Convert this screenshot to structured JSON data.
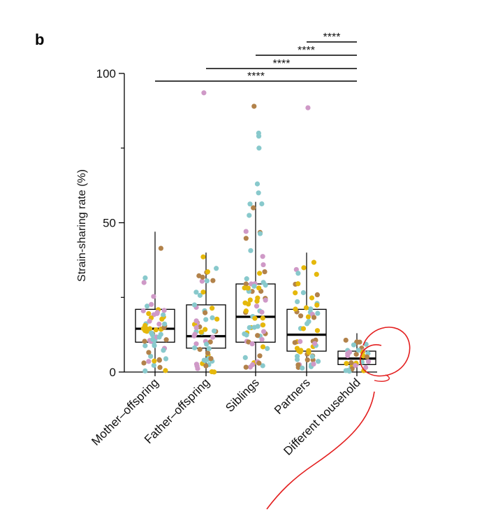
{
  "panel_label": "b",
  "chart_data": {
    "type": "box",
    "ylabel": "Strain-sharing rate (%)",
    "xlabel": "",
    "ylim": [
      0,
      100
    ],
    "yticks": [
      "0",
      "50",
      "100"
    ],
    "categories": [
      "Mother–offspring",
      "Father–offspring",
      "Siblings",
      "Partners",
      "Different household"
    ],
    "boxes": [
      {
        "q1": 10,
        "median": 14.5,
        "q3": 21,
        "whisker_low": 0,
        "whisker_high": 47
      },
      {
        "q1": 8,
        "median": 12,
        "q3": 22.5,
        "whisker_low": 0,
        "whisker_high": 40
      },
      {
        "q1": 10,
        "median": 18.5,
        "q3": 29.5,
        "whisker_low": 0,
        "whisker_high": 57
      },
      {
        "q1": 7,
        "median": 12.5,
        "q3": 21,
        "whisker_low": 0,
        "whisker_high": 40
      },
      {
        "q1": 2.5,
        "median": 4.5,
        "q3": 7,
        "whisker_low": 0,
        "whisker_high": 13
      }
    ],
    "point_colors": [
      "#88c9cc",
      "#cf99c7",
      "#b2824a",
      "#e5b80b"
    ],
    "outliers": [
      {
        "category": 1,
        "value": 93.5,
        "color": "#cf99c7"
      },
      {
        "category": 2,
        "value": 89,
        "color": "#b2824a"
      },
      {
        "category": 2,
        "value": 80,
        "color": "#88c9cc"
      },
      {
        "category": 2,
        "value": 79,
        "color": "#88c9cc"
      },
      {
        "category": 2,
        "value": 75,
        "color": "#88c9cc"
      },
      {
        "category": 2,
        "value": 63,
        "color": "#88c9cc"
      },
      {
        "category": 2,
        "value": 60,
        "color": "#88c9cc"
      },
      {
        "category": 3,
        "value": 88.5,
        "color": "#cf99c7"
      }
    ],
    "significance": [
      {
        "from": 0,
        "to": 4,
        "label": "****"
      },
      {
        "from": 1,
        "to": 4,
        "label": "****"
      },
      {
        "from": 2,
        "to": 4,
        "label": "****"
      },
      {
        "from": 3,
        "to": 4,
        "label": "****"
      }
    ],
    "annotation": {
      "type": "hand-drawn circle",
      "color": "#e31e1e",
      "target": "Different household"
    }
  }
}
